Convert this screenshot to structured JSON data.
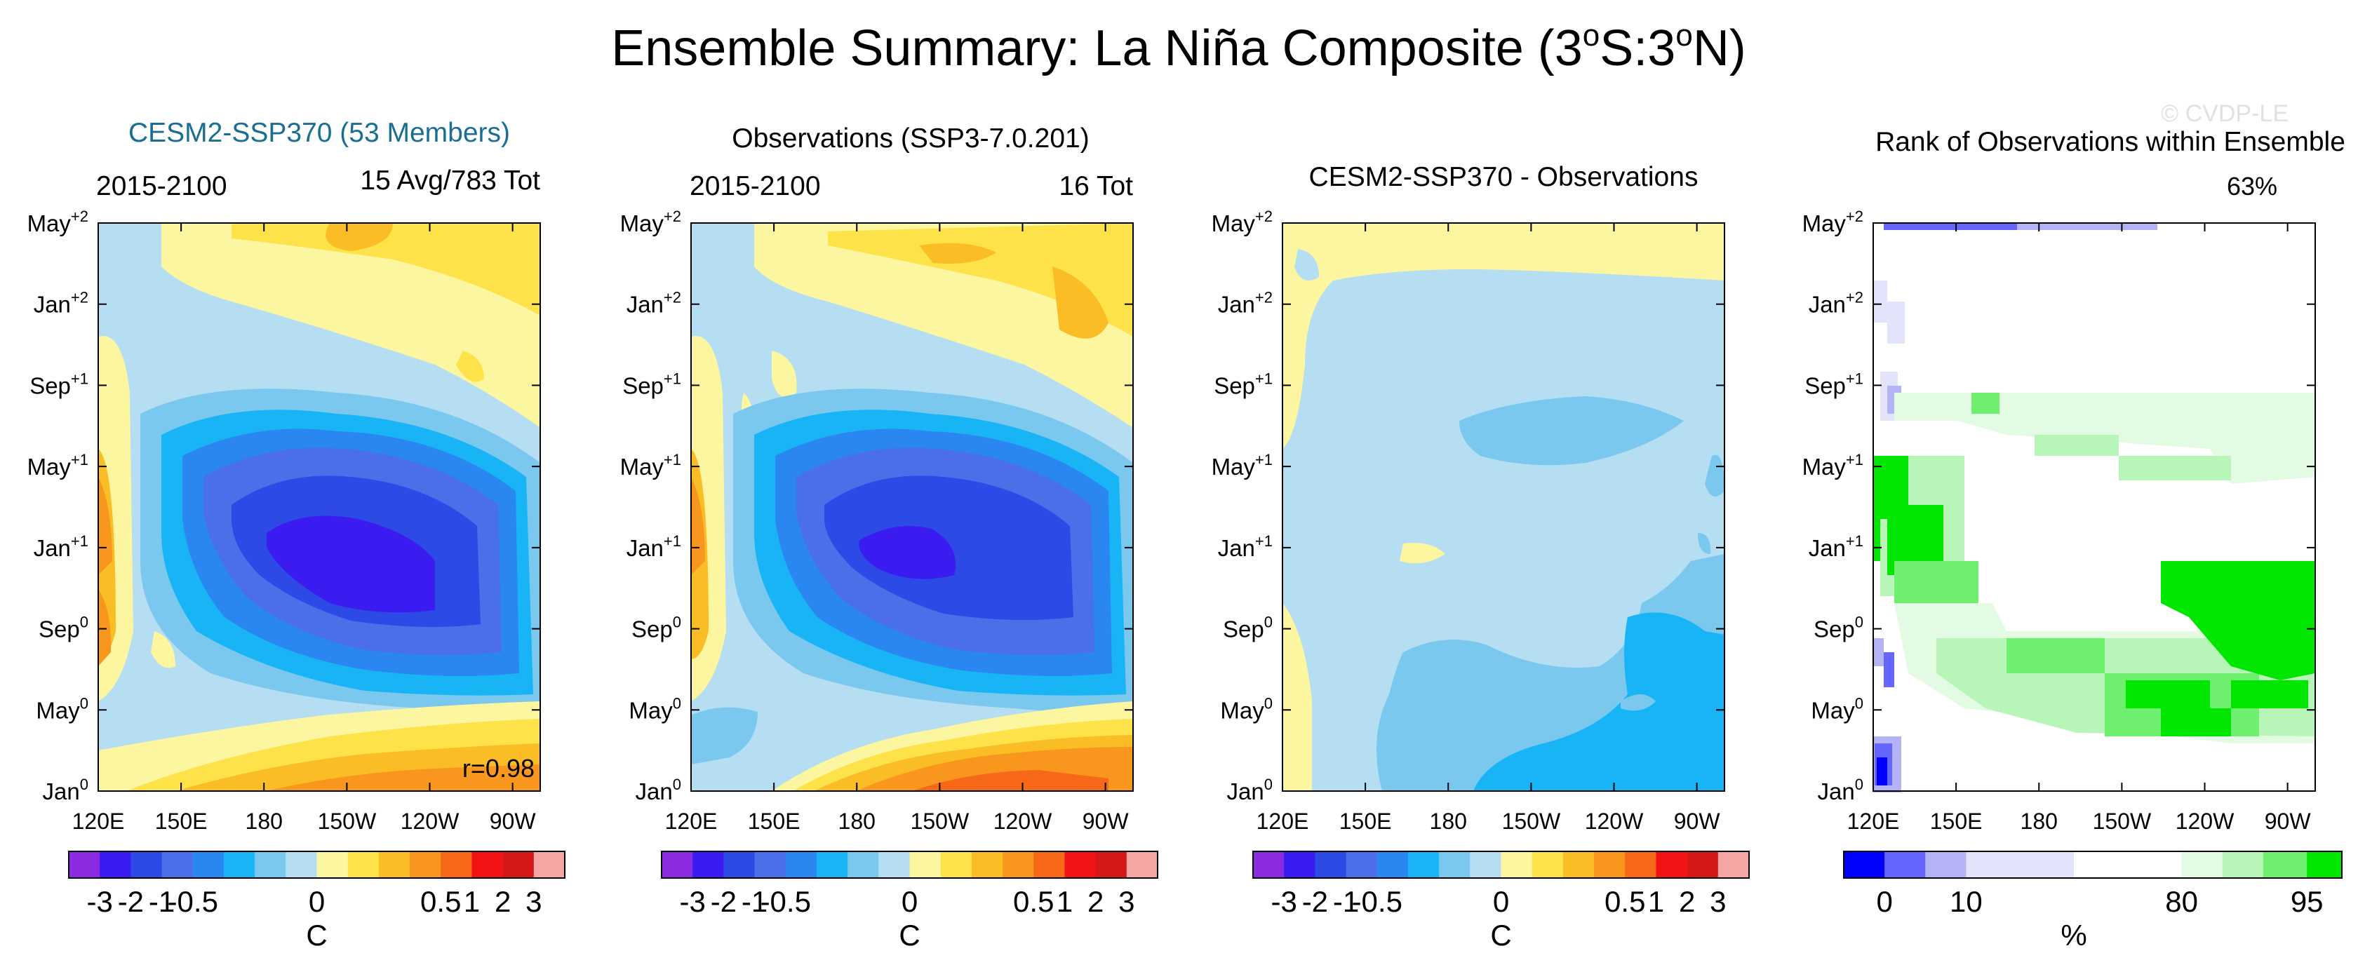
{
  "title_main": "Ensemble Summary: La Niña Composite (3",
  "title_deg": "o",
  "title_mid": "S:3",
  "title_end": "N)",
  "watermark": "© CVDP-LE",
  "x_ticks": [
    "120E",
    "150E",
    "180",
    "150W",
    "120W",
    "90W"
  ],
  "y_ticks": [
    {
      "base": "Jan",
      "sup": "0"
    },
    {
      "base": "May",
      "sup": "0"
    },
    {
      "base": "Sep",
      "sup": "0"
    },
    {
      "base": "Jan",
      "sup": "+1"
    },
    {
      "base": "May",
      "sup": "+1"
    },
    {
      "base": "Sep",
      "sup": "+1"
    },
    {
      "base": "Jan",
      "sup": "+2"
    },
    {
      "base": "May",
      "sup": "+2"
    }
  ],
  "temp_colorbar": {
    "colors": [
      "#8a2be2",
      "#3b1cf0",
      "#2d49e6",
      "#4a6fe8",
      "#2a86f0",
      "#18b4f5",
      "#7ac8ee",
      "#b5def2",
      "#fdf6a0",
      "#fde24a",
      "#fbbd26",
      "#f8961e",
      "#f76818",
      "#f21414",
      "#d41818",
      "#f7a6a6"
    ],
    "labels": [
      "-3",
      "-2",
      "-1",
      "-0.5",
      "0",
      "0.5",
      "1",
      "2",
      "3"
    ],
    "units": "C"
  },
  "rank_colorbar": {
    "colors": [
      "#0000ff",
      "#6666ff",
      "#b3b3f5",
      "#e3e3fb",
      "#ffffff",
      "#e3fbe3",
      "#b8f5b8",
      "#6ef06e",
      "#00e600"
    ],
    "labels": [
      "0",
      "10",
      "80",
      "95"
    ],
    "units": "%"
  },
  "chart_data": [
    {
      "type": "heatmap",
      "title": "CESM2-SSP370 (53 Members)",
      "title_color": "#1a6e93",
      "left_label": "2015-2100",
      "right_label": "15 Avg/783 Tot",
      "annotation": "r=0.98",
      "x_range": [
        "120E",
        "80W"
      ],
      "y_range": [
        "Jan0",
        "May+2"
      ],
      "field": "La Niña composite SST anomaly (C), ensemble mean; min about -2 C near 150W in Oct0-Dec0"
    },
    {
      "type": "heatmap",
      "title": "Observations (SSP3-7.0.201)",
      "title_color": "#111111",
      "left_label": "2015-2100",
      "right_label": "16 Tot",
      "field": "La Niña composite SST anomaly (C), observations"
    },
    {
      "type": "heatmap",
      "title": "CESM2-SSP370 - Observations",
      "title_color": "#111111",
      "field": "Difference model minus observations (C), mostly -0.5 to 0"
    },
    {
      "type": "heatmap",
      "title": "Rank of Observations within Ensemble",
      "title_color": "#111111",
      "right_label": "63%",
      "field": "Percentile rank of observations within the ensemble (%)"
    }
  ]
}
